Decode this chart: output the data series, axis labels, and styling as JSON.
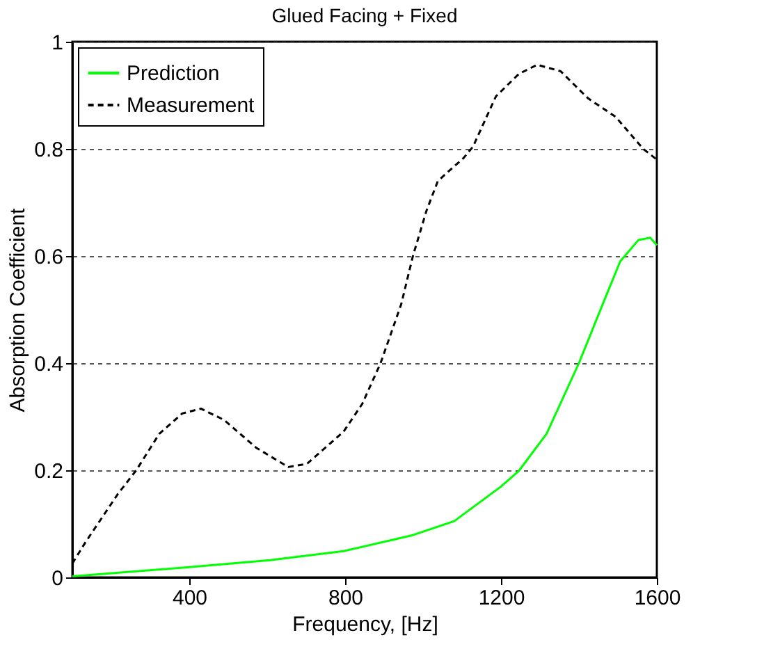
{
  "chart_data": {
    "type": "line",
    "title": "Glued Facing + Fixed",
    "xlabel": "Frequency, [Hz]",
    "ylabel": "Absorption Coefficient",
    "xlim": [
      100,
      1600
    ],
    "xticks": [
      400,
      800,
      1200,
      1600
    ],
    "ylim": [
      0,
      1
    ],
    "yticks": [
      0,
      0.2,
      0.4,
      0.6,
      0.8,
      1
    ],
    "grid": "y",
    "legend": "top left",
    "marker": "none",
    "series": [
      {
        "name": "Prediction",
        "color": "#00ff00",
        "line_style": "solid",
        "x": [
          100,
          400,
          607,
          796,
          974,
          1080,
          1199,
          1246,
          1317,
          1400,
          1465,
          1506,
          1553,
          1583,
          1600
        ],
        "values": [
          0.002,
          0.019,
          0.032,
          0.049,
          0.079,
          0.105,
          0.169,
          0.199,
          0.268,
          0.4,
          0.517,
          0.59,
          0.63,
          0.634,
          0.62
        ]
      },
      {
        "name": "Measurement",
        "color": "#000000",
        "line_style": "dashed",
        "x": [
          100,
          134,
          217,
          264,
          323,
          382,
          430,
          489,
          572,
          654,
          702,
          796,
          844,
          891,
          944,
          974,
          1009,
          1038,
          1104,
          1128,
          1187,
          1246,
          1293,
          1353,
          1424,
          1494,
          1565,
          1600
        ],
        "values": [
          0.026,
          0.066,
          0.156,
          0.2,
          0.268,
          0.306,
          0.315,
          0.294,
          0.242,
          0.206,
          0.212,
          0.272,
          0.324,
          0.4,
          0.51,
          0.6,
          0.685,
          0.74,
          0.783,
          0.804,
          0.898,
          0.94,
          0.957,
          0.945,
          0.894,
          0.86,
          0.8,
          0.78
        ]
      }
    ]
  }
}
